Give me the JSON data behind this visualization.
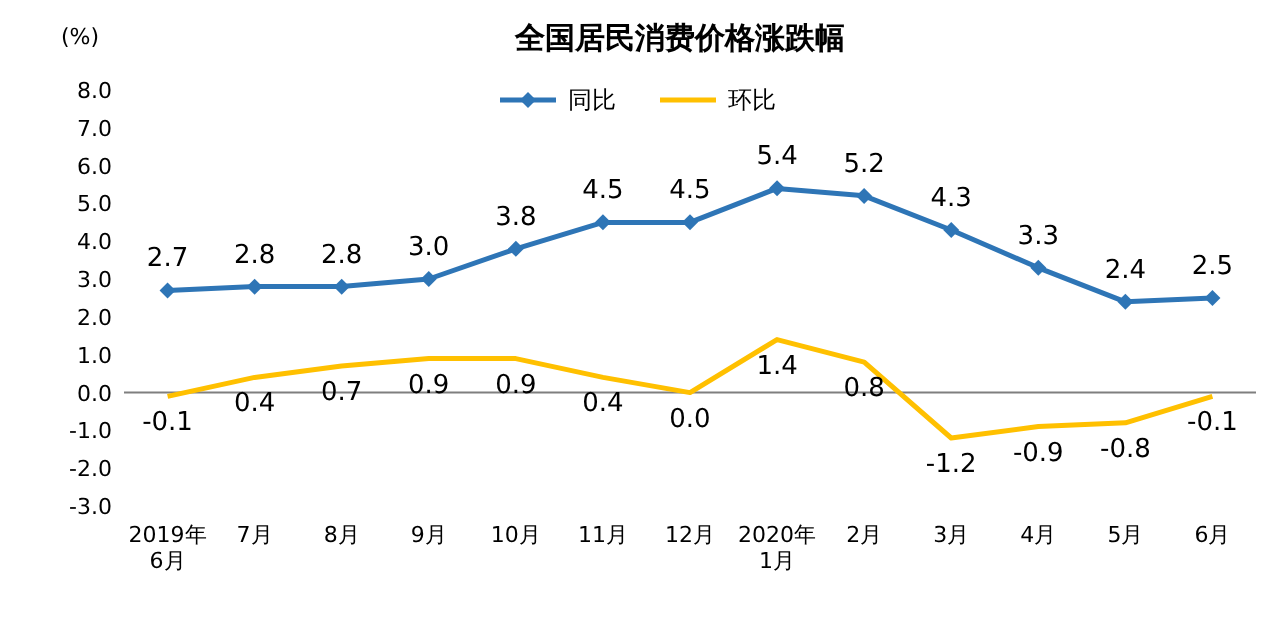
{
  "chart_data": {
    "type": "line",
    "title": "全国居民消费价格涨跌幅",
    "ylabel": "(%)",
    "categories": [
      "2019年\n6月",
      "7月",
      "8月",
      "9月",
      "10月",
      "11月",
      "12月",
      "2020年\n1月",
      "2月",
      "3月",
      "4月",
      "5月",
      "6月"
    ],
    "series": [
      {
        "name": "同比",
        "color": "#2e75b6",
        "marker": "diamond",
        "values": [
          2.7,
          2.8,
          2.8,
          3.0,
          3.8,
          4.5,
          4.5,
          5.4,
          5.2,
          4.3,
          3.3,
          2.4,
          2.5
        ],
        "value_labels": [
          "2.7",
          "2.8",
          "2.8",
          "3.0",
          "3.8",
          "4.5",
          "4.5",
          "5.4",
          "5.2",
          "4.3",
          "3.3",
          "2.4",
          "2.5"
        ]
      },
      {
        "name": "环比",
        "color": "#ffc000",
        "marker": "none",
        "values": [
          -0.1,
          0.4,
          0.7,
          0.9,
          0.9,
          0.4,
          0.0,
          1.4,
          0.8,
          -1.2,
          -0.9,
          -0.8,
          -0.1
        ],
        "value_labels": [
          "-0.1",
          "0.4",
          "0.7",
          "0.9",
          "0.9",
          "0.4",
          "0.0",
          "1.4",
          "0.8",
          "-1.2",
          "-0.9",
          "-0.8",
          "-0.1"
        ]
      }
    ],
    "ylim": [
      -3,
      8
    ],
    "yticks": [
      {
        "value": -3,
        "label": "-3.0"
      },
      {
        "value": -2,
        "label": "-2.0"
      },
      {
        "value": -1,
        "label": "-1.0"
      },
      {
        "value": 0,
        "label": "0.0"
      },
      {
        "value": 1,
        "label": "1.0"
      },
      {
        "value": 2,
        "label": "2.0"
      },
      {
        "value": 3,
        "label": "3.0"
      },
      {
        "value": 4,
        "label": "4.0"
      },
      {
        "value": 5,
        "label": "5.0"
      },
      {
        "value": 6,
        "label": "6.0"
      },
      {
        "value": 7,
        "label": "7.0"
      },
      {
        "value": 8,
        "label": "8.0"
      }
    ],
    "legend": "top",
    "line_style": "solid"
  }
}
